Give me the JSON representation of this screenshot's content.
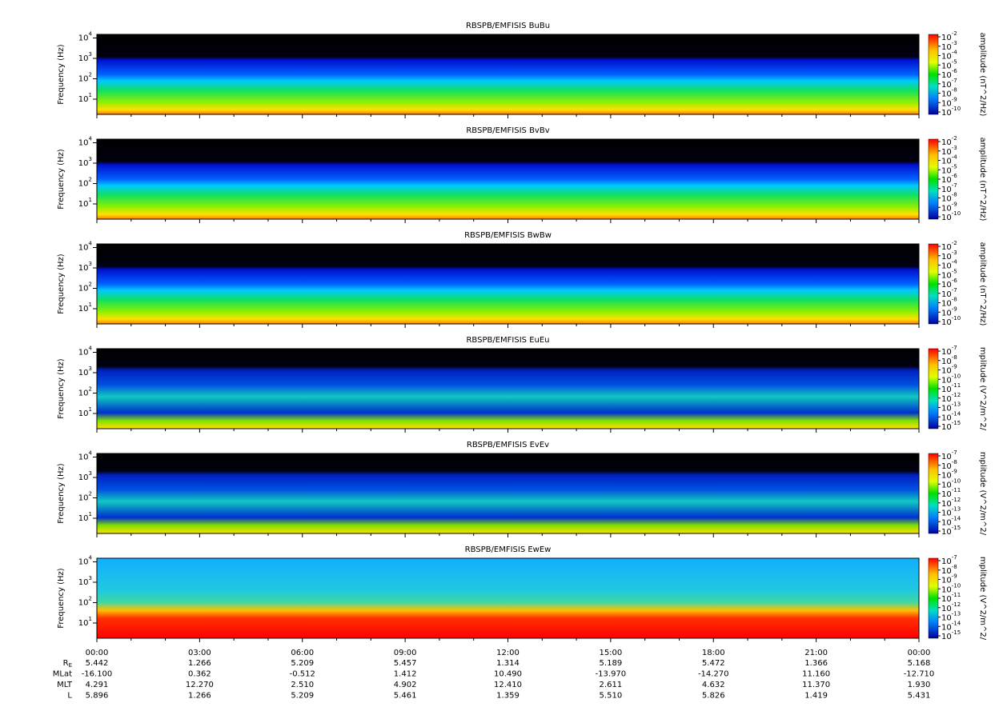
{
  "panels": [
    {
      "title": "RBSPB/EMFISIS  BuBu",
      "ylabel": "Frequency (Hz)",
      "colorbar_label": "amplitude (nT^2/Hz)",
      "yticks": [
        {
          "base": "10",
          "exp": "1"
        },
        {
          "base": "10",
          "exp": "2"
        },
        {
          "base": "10",
          "exp": "3"
        },
        {
          "base": "10",
          "exp": "4"
        }
      ],
      "colorbar_ticks": [
        {
          "base": "10",
          "exp": "-2"
        },
        {
          "base": "10",
          "exp": "-3"
        },
        {
          "base": "10",
          "exp": "-4"
        },
        {
          "base": "10",
          "exp": "-5"
        },
        {
          "base": "10",
          "exp": "-6"
        },
        {
          "base": "10",
          "exp": "-7"
        },
        {
          "base": "10",
          "exp": "-8"
        },
        {
          "base": "10",
          "exp": "-9"
        },
        {
          "base": "10",
          "exp": "-10"
        }
      ]
    },
    {
      "title": "RBSPB/EMFISIS  BvBv",
      "ylabel": "Frequency (Hz)",
      "colorbar_label": "amplitude (nT^2/Hz)",
      "yticks": [
        {
          "base": "10",
          "exp": "1"
        },
        {
          "base": "10",
          "exp": "2"
        },
        {
          "base": "10",
          "exp": "3"
        },
        {
          "base": "10",
          "exp": "4"
        }
      ],
      "colorbar_ticks": [
        {
          "base": "10",
          "exp": "-2"
        },
        {
          "base": "10",
          "exp": "-3"
        },
        {
          "base": "10",
          "exp": "-4"
        },
        {
          "base": "10",
          "exp": "-5"
        },
        {
          "base": "10",
          "exp": "-6"
        },
        {
          "base": "10",
          "exp": "-7"
        },
        {
          "base": "10",
          "exp": "-8"
        },
        {
          "base": "10",
          "exp": "-9"
        },
        {
          "base": "10",
          "exp": "-10"
        }
      ]
    },
    {
      "title": "RBSPB/EMFISIS  BwBw",
      "ylabel": "Frequency (Hz)",
      "colorbar_label": "amplitude (nT^2/Hz)",
      "yticks": [
        {
          "base": "10",
          "exp": "1"
        },
        {
          "base": "10",
          "exp": "2"
        },
        {
          "base": "10",
          "exp": "3"
        },
        {
          "base": "10",
          "exp": "4"
        }
      ],
      "colorbar_ticks": [
        {
          "base": "10",
          "exp": "-2"
        },
        {
          "base": "10",
          "exp": "-3"
        },
        {
          "base": "10",
          "exp": "-4"
        },
        {
          "base": "10",
          "exp": "-5"
        },
        {
          "base": "10",
          "exp": "-6"
        },
        {
          "base": "10",
          "exp": "-7"
        },
        {
          "base": "10",
          "exp": "-8"
        },
        {
          "base": "10",
          "exp": "-9"
        },
        {
          "base": "10",
          "exp": "-10"
        }
      ]
    },
    {
      "title": "RBSPB/EMFISIS  EuEu",
      "ylabel": "Frequency (Hz)",
      "colorbar_label": "mplitude (V^2/m^2/",
      "yticks": [
        {
          "base": "10",
          "exp": "1"
        },
        {
          "base": "10",
          "exp": "2"
        },
        {
          "base": "10",
          "exp": "3"
        },
        {
          "base": "10",
          "exp": "4"
        }
      ],
      "colorbar_ticks": [
        {
          "base": "10",
          "exp": "-7"
        },
        {
          "base": "10",
          "exp": "-8"
        },
        {
          "base": "10",
          "exp": "-9"
        },
        {
          "base": "10",
          "exp": "-10"
        },
        {
          "base": "10",
          "exp": "-11"
        },
        {
          "base": "10",
          "exp": "-12"
        },
        {
          "base": "10",
          "exp": "-13"
        },
        {
          "base": "10",
          "exp": "-14"
        },
        {
          "base": "10",
          "exp": "-15"
        }
      ]
    },
    {
      "title": "RBSPB/EMFISIS  EvEv",
      "ylabel": "Frequency (Hz)",
      "colorbar_label": "mplitude (V^2/m^2/",
      "yticks": [
        {
          "base": "10",
          "exp": "1"
        },
        {
          "base": "10",
          "exp": "2"
        },
        {
          "base": "10",
          "exp": "3"
        },
        {
          "base": "10",
          "exp": "4"
        }
      ],
      "colorbar_ticks": [
        {
          "base": "10",
          "exp": "-7"
        },
        {
          "base": "10",
          "exp": "-8"
        },
        {
          "base": "10",
          "exp": "-9"
        },
        {
          "base": "10",
          "exp": "-10"
        },
        {
          "base": "10",
          "exp": "-11"
        },
        {
          "base": "10",
          "exp": "-12"
        },
        {
          "base": "10",
          "exp": "-13"
        },
        {
          "base": "10",
          "exp": "-14"
        },
        {
          "base": "10",
          "exp": "-15"
        }
      ]
    },
    {
      "title": "RBSPB/EMFISIS  EwEw",
      "ylabel": "Frequency (Hz)",
      "colorbar_label": "mplitude (V^2/m^2/",
      "yticks": [
        {
          "base": "10",
          "exp": "1"
        },
        {
          "base": "10",
          "exp": "2"
        },
        {
          "base": "10",
          "exp": "3"
        },
        {
          "base": "10",
          "exp": "4"
        }
      ],
      "colorbar_ticks": [
        {
          "base": "10",
          "exp": "-7"
        },
        {
          "base": "10",
          "exp": "-8"
        },
        {
          "base": "10",
          "exp": "-9"
        },
        {
          "base": "10",
          "exp": "-10"
        },
        {
          "base": "10",
          "exp": "-11"
        },
        {
          "base": "10",
          "exp": "-12"
        },
        {
          "base": "10",
          "exp": "-13"
        },
        {
          "base": "10",
          "exp": "-14"
        },
        {
          "base": "10",
          "exp": "-15"
        }
      ]
    }
  ],
  "xticks": [
    "00:00",
    "03:00",
    "06:00",
    "09:00",
    "12:00",
    "15:00",
    "18:00",
    "21:00",
    "00:00"
  ],
  "ephemeris": [
    {
      "label": {
        "base": "R",
        "sub": "E"
      },
      "values": [
        "5.442",
        "1.266",
        "5.209",
        "5.457",
        "1.314",
        "5.189",
        "5.472",
        "1.366",
        "5.168"
      ]
    },
    {
      "label": {
        "base": "MLat"
      },
      "values": [
        "-16.100",
        "0.362",
        "-0.512",
        "1.412",
        "10.490",
        "-13.970",
        "-14.270",
        "11.160",
        "-12.710"
      ]
    },
    {
      "label": {
        "base": "MLT"
      },
      "values": [
        "4.291",
        "12.270",
        "2.510",
        "4.902",
        "12.410",
        "2.611",
        "4.632",
        "11.370",
        "1.930"
      ]
    },
    {
      "label": {
        "base": "L"
      },
      "values": [
        "5.896",
        "1.266",
        "5.209",
        "5.461",
        "1.359",
        "5.510",
        "5.826",
        "1.419",
        "5.431"
      ]
    }
  ]
}
